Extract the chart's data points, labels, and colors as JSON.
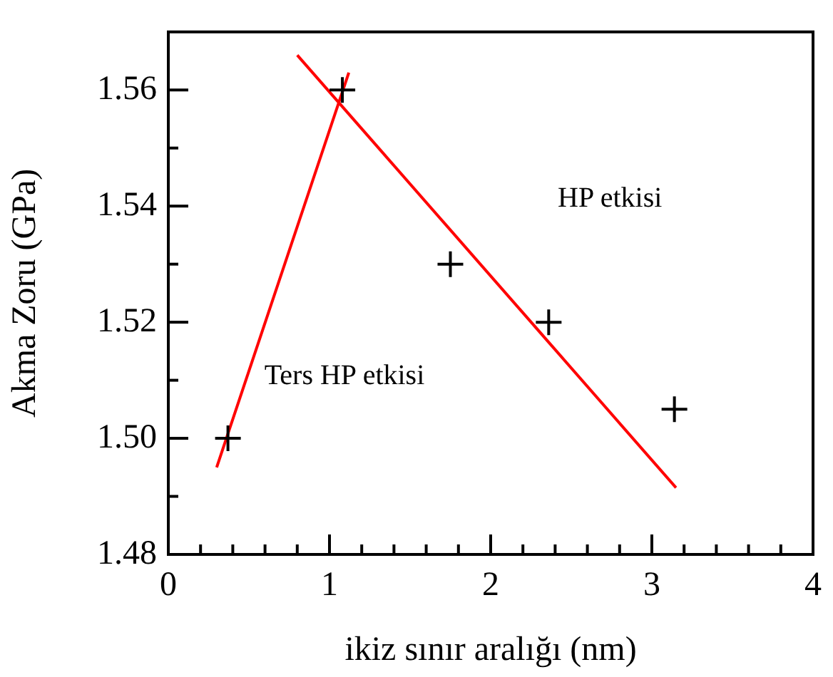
{
  "chart_data": {
    "type": "scatter",
    "xlabel": "ikiz sınır aralığı (nm)",
    "ylabel": "Akma Zoru (GPa)",
    "xlim": [
      0,
      4
    ],
    "ylim": [
      1.48,
      1.57
    ],
    "xticks": [
      0,
      {
        "value": 0.2,
        "label": null
      },
      {
        "value": 0.4,
        "label": null
      },
      {
        "value": 0.6,
        "label": null
      },
      {
        "value": 0.8,
        "label": null
      },
      1,
      {
        "value": 1.2,
        "label": null
      },
      {
        "value": 1.4,
        "label": null
      },
      {
        "value": 1.6,
        "label": null
      },
      {
        "value": 1.8,
        "label": null
      },
      2,
      {
        "value": 2.2,
        "label": null
      },
      {
        "value": 2.4,
        "label": null
      },
      {
        "value": 2.6,
        "label": null
      },
      {
        "value": 2.8,
        "label": null
      },
      3,
      {
        "value": 3.2,
        "label": null
      },
      {
        "value": 3.4,
        "label": null
      },
      {
        "value": 3.6,
        "label": null
      },
      {
        "value": 3.8,
        "label": null
      },
      4
    ],
    "yticks": [
      {
        "value": 1.48,
        "label": "1.48"
      },
      {
        "value": 1.49,
        "label": null
      },
      {
        "value": 1.5,
        "label": "1.50"
      },
      {
        "value": 1.51,
        "label": null
      },
      {
        "value": 1.52,
        "label": "1.52"
      },
      {
        "value": 1.53,
        "label": null
      },
      {
        "value": 1.54,
        "label": "1.54"
      },
      {
        "value": 1.55,
        "label": null
      },
      {
        "value": 1.56,
        "label": "1.56"
      }
    ],
    "grid": false,
    "legend": false,
    "series": [
      {
        "color": "#000000",
        "marker": "cross",
        "x": [
          0.37,
          1.08,
          1.75,
          2.36,
          3.14
        ],
        "values": [
          1.5,
          1.56,
          1.53,
          1.52,
          1.505
        ]
      },
      {
        "type": "line",
        "color": "#ff0000",
        "marker": "none",
        "x": [
          0.3,
          1.12
        ],
        "values": [
          1.495,
          1.563
        ]
      },
      {
        "type": "line",
        "color": "#ff0000",
        "marker": "none",
        "x": [
          0.8,
          3.15
        ],
        "values": [
          1.566,
          1.4915
        ]
      }
    ],
    "annotations": [
      "HP etkisi",
      "Ters HP etkisi"
    ]
  }
}
